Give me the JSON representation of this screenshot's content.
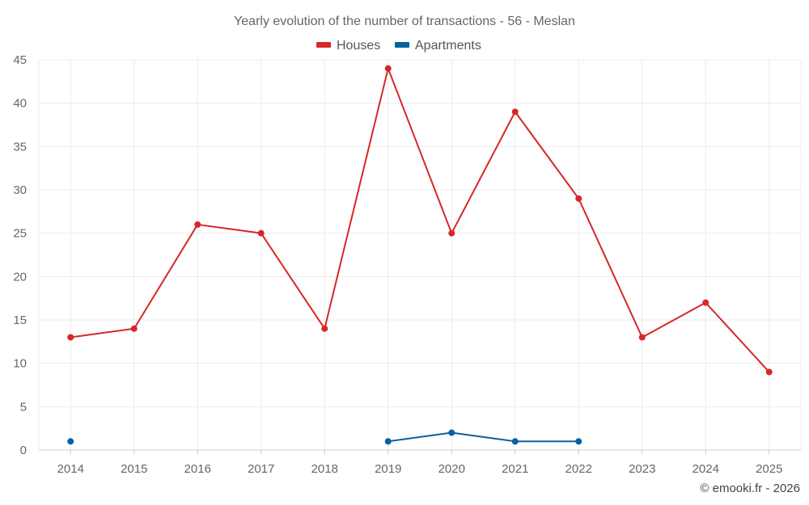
{
  "chart_data": {
    "type": "line",
    "title": "Yearly evolution of the number of transactions - 56 - Meslan",
    "categories": [
      "2014",
      "2015",
      "2016",
      "2017",
      "2018",
      "2019",
      "2020",
      "2021",
      "2022",
      "2023",
      "2024",
      "2025"
    ],
    "series": [
      {
        "name": "Houses",
        "color": "#d62828",
        "values": [
          13,
          14,
          26,
          25,
          14,
          44,
          25,
          39,
          29,
          13,
          17,
          9
        ]
      },
      {
        "name": "Apartments",
        "color": "#08629c",
        "values": [
          1,
          null,
          null,
          null,
          null,
          1,
          2,
          1,
          1,
          null,
          null,
          null
        ]
      }
    ],
    "ylim": [
      0,
      45
    ],
    "yticks": [
      0,
      5,
      10,
      15,
      20,
      25,
      30,
      35,
      40,
      45
    ],
    "grid": true,
    "legend_position": "top-center",
    "xlabel": "",
    "ylabel": ""
  },
  "credit": "© emooki.fr - 2026"
}
